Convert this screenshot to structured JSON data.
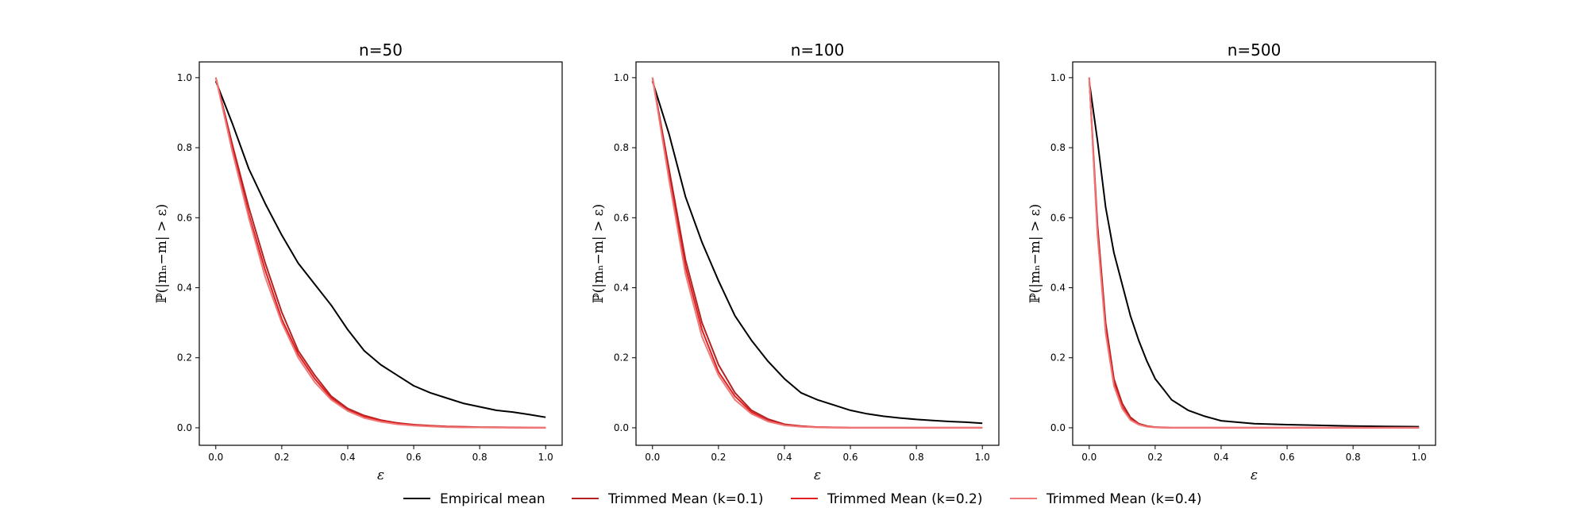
{
  "chart_data": [
    {
      "type": "line",
      "title": "n=50",
      "xlabel": "ε",
      "ylabel": "ℙ(|mₙ−m| > ε)",
      "xlim": [
        -0.05,
        1.05
      ],
      "ylim": [
        -0.05,
        1.045
      ],
      "xticks": [
        0.0,
        0.2,
        0.4,
        0.6,
        0.8,
        1.0
      ],
      "yticks": [
        0.0,
        0.2,
        0.4,
        0.6,
        0.8,
        1.0
      ],
      "xtick_labels": [
        "0.0",
        "0.2",
        "0.4",
        "0.6",
        "0.8",
        "1.0"
      ],
      "ytick_labels": [
        "0.0",
        "0.2",
        "0.4",
        "0.6",
        "0.8",
        "1.0"
      ],
      "grid": false,
      "x": [
        0.0,
        0.05,
        0.1,
        0.15,
        0.2,
        0.25,
        0.3,
        0.35,
        0.4,
        0.45,
        0.5,
        0.55,
        0.6,
        0.65,
        0.7,
        0.75,
        0.8,
        0.85,
        0.9,
        0.95,
        1.0
      ],
      "series": [
        {
          "name": "Empirical mean",
          "color": "#000000",
          "values": [
            0.99,
            0.87,
            0.74,
            0.64,
            0.55,
            0.47,
            0.41,
            0.35,
            0.28,
            0.22,
            0.18,
            0.15,
            0.12,
            0.1,
            0.085,
            0.07,
            0.06,
            0.05,
            0.045,
            0.038,
            0.03
          ]
        },
        {
          "name": "Trimmed Mean (k=0.1)",
          "color": "#b22222",
          "values": [
            1.0,
            0.81,
            0.63,
            0.47,
            0.33,
            0.22,
            0.15,
            0.09,
            0.055,
            0.035,
            0.022,
            0.014,
            0.009,
            0.006,
            0.004,
            0.003,
            0.002,
            0.0015,
            0.001,
            0.0005,
            0.0
          ]
        },
        {
          "name": "Trimmed Mean (k=0.2)",
          "color": "#e02020",
          "values": [
            1.0,
            0.8,
            0.61,
            0.45,
            0.31,
            0.21,
            0.14,
            0.085,
            0.05,
            0.032,
            0.02,
            0.012,
            0.008,
            0.005,
            0.003,
            0.002,
            0.001,
            0.001,
            0.0005,
            0.0,
            0.0
          ]
        },
        {
          "name": "Trimmed Mean (k=0.4)",
          "color": "#f07878",
          "values": [
            1.0,
            0.79,
            0.6,
            0.43,
            0.3,
            0.2,
            0.13,
            0.08,
            0.048,
            0.028,
            0.017,
            0.01,
            0.006,
            0.004,
            0.002,
            0.001,
            0.001,
            0.0005,
            0.0,
            0.0,
            0.0
          ]
        }
      ]
    },
    {
      "type": "line",
      "title": "n=100",
      "xlabel": "ε",
      "ylabel": "ℙ(|mₙ−m| > ε)",
      "xlim": [
        -0.05,
        1.05
      ],
      "ylim": [
        -0.05,
        1.045
      ],
      "xticks": [
        0.0,
        0.2,
        0.4,
        0.6,
        0.8,
        1.0
      ],
      "yticks": [
        0.0,
        0.2,
        0.4,
        0.6,
        0.8,
        1.0
      ],
      "xtick_labels": [
        "0.0",
        "0.2",
        "0.4",
        "0.6",
        "0.8",
        "1.0"
      ],
      "ytick_labels": [
        "0.0",
        "0.2",
        "0.4",
        "0.6",
        "0.8",
        "1.0"
      ],
      "grid": false,
      "x": [
        0.0,
        0.05,
        0.1,
        0.15,
        0.2,
        0.25,
        0.3,
        0.35,
        0.4,
        0.45,
        0.5,
        0.55,
        0.6,
        0.65,
        0.7,
        0.75,
        0.8,
        0.85,
        0.9,
        0.95,
        1.0
      ],
      "series": [
        {
          "name": "Empirical mean",
          "color": "#000000",
          "values": [
            0.99,
            0.84,
            0.66,
            0.53,
            0.42,
            0.32,
            0.25,
            0.19,
            0.14,
            0.1,
            0.08,
            0.065,
            0.05,
            0.04,
            0.033,
            0.028,
            0.024,
            0.021,
            0.018,
            0.016,
            0.013
          ]
        },
        {
          "name": "Trimmed Mean (k=0.1)",
          "color": "#b22222",
          "values": [
            1.0,
            0.74,
            0.48,
            0.3,
            0.18,
            0.1,
            0.05,
            0.025,
            0.01,
            0.005,
            0.002,
            0.001,
            0.0,
            0.0,
            0.0,
            0.0,
            0.0,
            0.0,
            0.0,
            0.0,
            0.0
          ]
        },
        {
          "name": "Trimmed Mean (k=0.2)",
          "color": "#e02020",
          "values": [
            1.0,
            0.72,
            0.46,
            0.28,
            0.16,
            0.09,
            0.045,
            0.02,
            0.008,
            0.004,
            0.002,
            0.001,
            0.0,
            0.0,
            0.0,
            0.0,
            0.0,
            0.0,
            0.0,
            0.0,
            0.0
          ]
        },
        {
          "name": "Trimmed Mean (k=0.4)",
          "color": "#f07878",
          "values": [
            1.0,
            0.71,
            0.44,
            0.26,
            0.15,
            0.08,
            0.04,
            0.018,
            0.007,
            0.003,
            0.001,
            0.0,
            0.0,
            0.0,
            0.0,
            0.0,
            0.0,
            0.0,
            0.0,
            0.0,
            0.0
          ]
        }
      ]
    },
    {
      "type": "line",
      "title": "n=500",
      "xlabel": "ε",
      "ylabel": "ℙ(|mₙ−m| > ε)",
      "xlim": [
        -0.05,
        1.05
      ],
      "ylim": [
        -0.05,
        1.045
      ],
      "xticks": [
        0.0,
        0.2,
        0.4,
        0.6,
        0.8,
        1.0
      ],
      "yticks": [
        0.0,
        0.2,
        0.4,
        0.6,
        0.8,
        1.0
      ],
      "xtick_labels": [
        "0.0",
        "0.2",
        "0.4",
        "0.6",
        "0.8",
        "1.0"
      ],
      "ytick_labels": [
        "0.0",
        "0.2",
        "0.4",
        "0.6",
        "0.8",
        "1.0"
      ],
      "grid": false,
      "x": [
        0.0,
        0.025,
        0.05,
        0.075,
        0.1,
        0.125,
        0.15,
        0.175,
        0.2,
        0.225,
        0.25,
        0.3,
        0.35,
        0.4,
        0.5,
        0.6,
        0.7,
        0.8,
        0.9,
        1.0
      ],
      "series": [
        {
          "name": "Empirical mean",
          "color": "#000000",
          "values": [
            0.99,
            0.82,
            0.63,
            0.5,
            0.41,
            0.32,
            0.25,
            0.19,
            0.14,
            0.11,
            0.08,
            0.05,
            0.033,
            0.02,
            0.012,
            0.009,
            0.007,
            0.005,
            0.004,
            0.003
          ]
        },
        {
          "name": "Trimmed Mean (k=0.1)",
          "color": "#b22222",
          "values": [
            1.0,
            0.58,
            0.3,
            0.14,
            0.07,
            0.03,
            0.012,
            0.005,
            0.002,
            0.001,
            0.0,
            0.0,
            0.0,
            0.0,
            0.0,
            0.0,
            0.0,
            0.0,
            0.0,
            0.0
          ]
        },
        {
          "name": "Trimmed Mean (k=0.2)",
          "color": "#e02020",
          "values": [
            1.0,
            0.56,
            0.28,
            0.13,
            0.06,
            0.025,
            0.01,
            0.004,
            0.0015,
            0.0005,
            0.0,
            0.0,
            0.0,
            0.0,
            0.0,
            0.0,
            0.0,
            0.0,
            0.0,
            0.0
          ]
        },
        {
          "name": "Trimmed Mean (k=0.4)",
          "color": "#f07878",
          "values": [
            1.0,
            0.55,
            0.27,
            0.12,
            0.055,
            0.022,
            0.009,
            0.003,
            0.001,
            0.0,
            0.0,
            0.0,
            0.0,
            0.0,
            0.0,
            0.0,
            0.0,
            0.0,
            0.0,
            0.0
          ]
        }
      ]
    }
  ],
  "legend": {
    "position": "bottom-center",
    "entries": [
      {
        "label": "Empirical mean",
        "color": "#000000"
      },
      {
        "label": "Trimmed Mean (k=0.1)",
        "color": "#b22222"
      },
      {
        "label": "Trimmed Mean (k=0.2)",
        "color": "#e02020"
      },
      {
        "label": "Trimmed Mean (k=0.4)",
        "color": "#f07878"
      }
    ]
  }
}
